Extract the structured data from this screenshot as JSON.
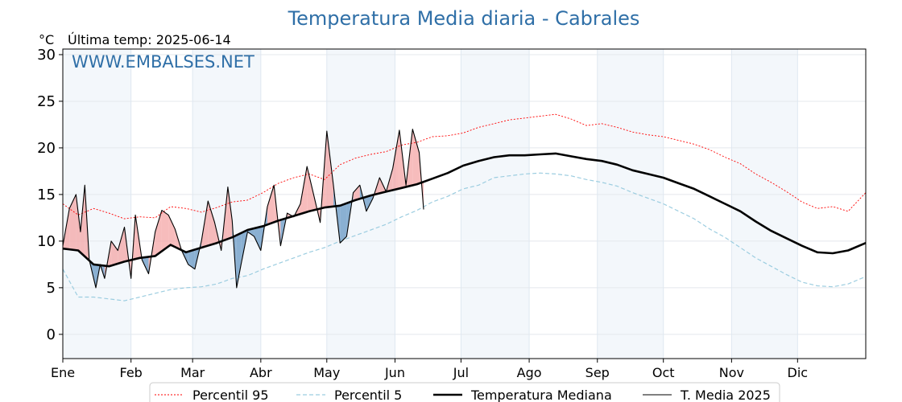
{
  "chart_data": {
    "type": "line",
    "title": "Temperatura Media diaria - Cabrales",
    "unit": "°C",
    "last_update_label": "Última temp: 2025-06-14",
    "watermark": "WWW.EMBALSES.NET",
    "ylim": [
      -2.6,
      30.6
    ],
    "yticks": [
      0,
      5,
      10,
      15,
      20,
      25,
      30
    ],
    "xlim": [
      1,
      366
    ],
    "months": [
      "Ene",
      "Feb",
      "Mar",
      "Abr",
      "May",
      "Jun",
      "Jul",
      "Ago",
      "Sep",
      "Oct",
      "Nov",
      "Dic"
    ],
    "month_start_days": [
      1,
      32,
      60,
      91,
      121,
      152,
      182,
      213,
      244,
      274,
      305,
      335
    ],
    "grid": true,
    "legend_position": "bottom",
    "series": [
      {
        "name": "Percentil 95",
        "color": "#ff0000",
        "style": "dotted",
        "x": [
          1,
          8,
          15,
          22,
          29,
          36,
          43,
          50,
          57,
          64,
          71,
          78,
          85,
          92,
          99,
          106,
          113,
          120,
          127,
          134,
          141,
          148,
          155,
          162,
          169,
          176,
          183,
          190,
          197,
          204,
          211,
          218,
          225,
          232,
          239,
          246,
          253,
          260,
          267,
          274,
          281,
          288,
          295,
          302,
          309,
          316,
          323,
          330,
          337,
          344,
          351,
          358,
          366
        ],
        "values": [
          14,
          12.8,
          13.5,
          13,
          12.4,
          12.6,
          12.5,
          13.7,
          13.5,
          13.1,
          13.6,
          14.2,
          14.4,
          15.2,
          16.2,
          16.8,
          17.2,
          16.6,
          18.2,
          18.9,
          19.3,
          19.6,
          20.3,
          20.6,
          21.2,
          21.3,
          21.6,
          22.2,
          22.6,
          23,
          23.2,
          23.4,
          23.6,
          23.1,
          22.4,
          22.6,
          22.2,
          21.7,
          21.4,
          21.2,
          20.8,
          20.4,
          19.8,
          19,
          18.3,
          17.2,
          16.3,
          15.3,
          14.2,
          13.5,
          13.7,
          13.2,
          15.2
        ]
      },
      {
        "name": "Percentil 5",
        "color": "#9ccde0",
        "style": "dashed",
        "x": [
          1,
          8,
          15,
          22,
          29,
          36,
          43,
          50,
          57,
          64,
          71,
          78,
          85,
          92,
          99,
          106,
          113,
          120,
          127,
          134,
          141,
          148,
          155,
          162,
          169,
          176,
          183,
          190,
          197,
          204,
          211,
          218,
          225,
          232,
          239,
          246,
          253,
          260,
          267,
          274,
          281,
          288,
          295,
          302,
          309,
          316,
          323,
          330,
          337,
          344,
          351,
          358,
          366
        ],
        "values": [
          7,
          4,
          4,
          3.8,
          3.6,
          4,
          4.4,
          4.8,
          5,
          5.1,
          5.4,
          6,
          6.3,
          7,
          7.6,
          8.2,
          8.8,
          9.3,
          10,
          10.6,
          11.2,
          11.8,
          12.6,
          13.3,
          14.2,
          14.8,
          15.6,
          16,
          16.8,
          17,
          17.2,
          17.3,
          17.2,
          17,
          16.6,
          16.3,
          15.9,
          15.2,
          14.6,
          14,
          13.2,
          12.4,
          11.3,
          10.4,
          9.3,
          8.2,
          7.3,
          6.4,
          5.6,
          5.2,
          5.1,
          5.4,
          6.2
        ]
      },
      {
        "name": "Temperatura Mediana",
        "color": "#000000",
        "style": "solid-thick",
        "x": [
          1,
          8,
          15,
          22,
          29,
          36,
          43,
          50,
          57,
          64,
          71,
          78,
          85,
          92,
          99,
          106,
          113,
          120,
          127,
          134,
          141,
          148,
          155,
          162,
          169,
          176,
          183,
          190,
          197,
          204,
          211,
          218,
          225,
          232,
          239,
          246,
          253,
          260,
          267,
          274,
          281,
          288,
          295,
          302,
          309,
          316,
          323,
          330,
          337,
          344,
          351,
          358,
          366
        ],
        "values": [
          9.2,
          9,
          7.5,
          7.3,
          7.8,
          8.2,
          8.4,
          9.6,
          8.8,
          9.3,
          9.8,
          10.4,
          11.2,
          11.6,
          12.2,
          12.7,
          13.2,
          13.6,
          13.8,
          14.4,
          14.9,
          15.3,
          15.7,
          16.1,
          16.7,
          17.3,
          18.1,
          18.6,
          19,
          19.2,
          19.2,
          19.3,
          19.4,
          19.1,
          18.8,
          18.6,
          18.2,
          17.6,
          17.2,
          16.8,
          16.2,
          15.6,
          14.8,
          14,
          13.2,
          12.1,
          11.1,
          10.3,
          9.5,
          8.8,
          8.7,
          9,
          9.8
        ]
      },
      {
        "name": "T. Media 2025",
        "color": "#000000",
        "style": "solid-thin",
        "x": [
          1,
          4,
          7,
          9,
          11,
          13,
          16,
          18,
          20,
          23,
          26,
          29,
          32,
          34,
          37,
          40,
          43,
          46,
          49,
          52,
          55,
          58,
          61,
          64,
          67,
          70,
          73,
          76,
          78,
          80,
          82,
          85,
          88,
          91,
          94,
          97,
          100,
          103,
          106,
          109,
          112,
          115,
          118,
          121,
          124,
          127,
          130,
          133,
          136,
          139,
          142,
          145,
          148,
          151,
          154,
          157,
          160,
          163,
          165
        ],
        "values": [
          9.5,
          13.5,
          15,
          11,
          16,
          8,
          5,
          7.5,
          6,
          10,
          9,
          11.5,
          6,
          12.8,
          8,
          6.5,
          11,
          13.3,
          12.8,
          11.3,
          9,
          7.5,
          7,
          10,
          14.3,
          12,
          9,
          15.8,
          12.2,
          5,
          7.5,
          11,
          10.5,
          9,
          13.7,
          16,
          9.5,
          13,
          12.6,
          14,
          18,
          15,
          12,
          21.8,
          16,
          9.8,
          10.5,
          15.2,
          16,
          13.2,
          14.6,
          16.8,
          15.3,
          17.8,
          21.9,
          16,
          22,
          19.5,
          13.4
        ]
      }
    ]
  }
}
